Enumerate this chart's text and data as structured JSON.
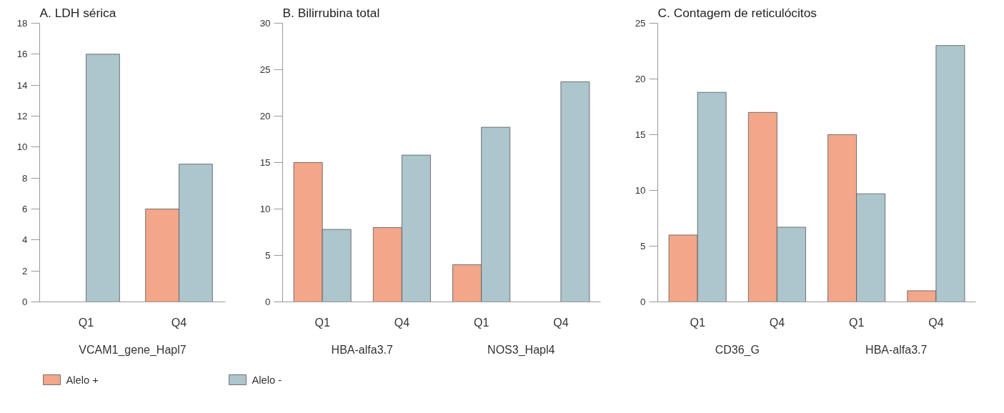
{
  "chart_data": [
    {
      "type": "bar",
      "title": "A. LDH sérica",
      "categories": [
        "Q1",
        "Q4"
      ],
      "annotations": [
        "VCAM1_gene_Hapl7"
      ],
      "ylim": [
        0,
        18
      ],
      "yticks": [
        0,
        2,
        4,
        6,
        8,
        10,
        12,
        14,
        16,
        18
      ],
      "grid": false,
      "legend": "bottom",
      "series": [
        {
          "name": "Alelo +",
          "color": "#f2a68a",
          "values": [
            null,
            6
          ]
        },
        {
          "name": "Alelo -",
          "color": "#adc5cc",
          "values": [
            16,
            8.9
          ]
        }
      ]
    },
    {
      "type": "bar",
      "title": "B. Bilirrubina total",
      "categories": [
        "Q1",
        "Q4",
        "Q1",
        "Q4"
      ],
      "annotations": [
        "HBA-alfa3.7",
        "NOS3_Hapl4"
      ],
      "ylim": [
        0,
        30
      ],
      "yticks": [
        0,
        5,
        10,
        15,
        20,
        25,
        30
      ],
      "grid": false,
      "series": [
        {
          "color": "#f2a68a",
          "values": [
            15,
            8,
            4,
            null
          ]
        },
        {
          "color": "#adc5cc",
          "values": [
            7.8,
            15.8,
            18.8,
            23.7
          ]
        }
      ]
    },
    {
      "type": "bar",
      "title": "C. Contagem de reticulócitos",
      "categories": [
        "Q1",
        "Q4",
        "Q1",
        "Q4"
      ],
      "annotations": [
        "CD36_G",
        "HBA-alfa3.7"
      ],
      "ylim": [
        0,
        25
      ],
      "yticks": [
        0,
        5,
        10,
        15,
        20,
        25
      ],
      "grid": false,
      "series": [
        {
          "color": "#f2a68a",
          "values": [
            6,
            17,
            15,
            1
          ]
        },
        {
          "color": "#adc5cc",
          "values": [
            18.8,
            6.7,
            9.7,
            23
          ]
        }
      ]
    }
  ]
}
